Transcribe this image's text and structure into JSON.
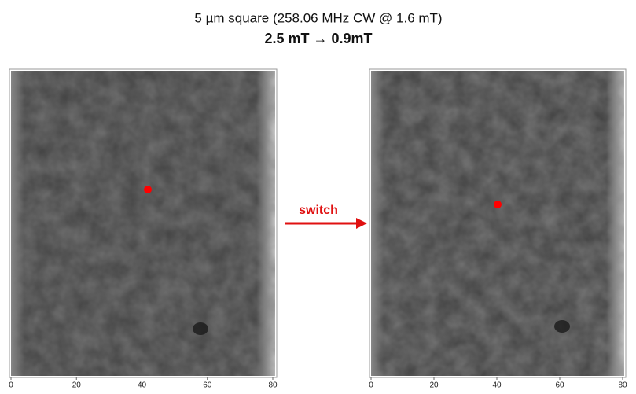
{
  "header": {
    "title": "5 µm square (258.06 MHz CW @ 1.6 mT)",
    "subtitle": "2.5 mT → 0.9mT"
  },
  "panels": [
    {
      "xlim": [
        0,
        80
      ],
      "xticks": [
        0,
        20,
        40,
        60,
        80
      ]
    },
    {
      "xlim": [
        0,
        80
      ],
      "xticks": [
        0,
        20,
        40,
        60,
        80
      ]
    }
  ],
  "arrow": {
    "label": "switch"
  }
}
